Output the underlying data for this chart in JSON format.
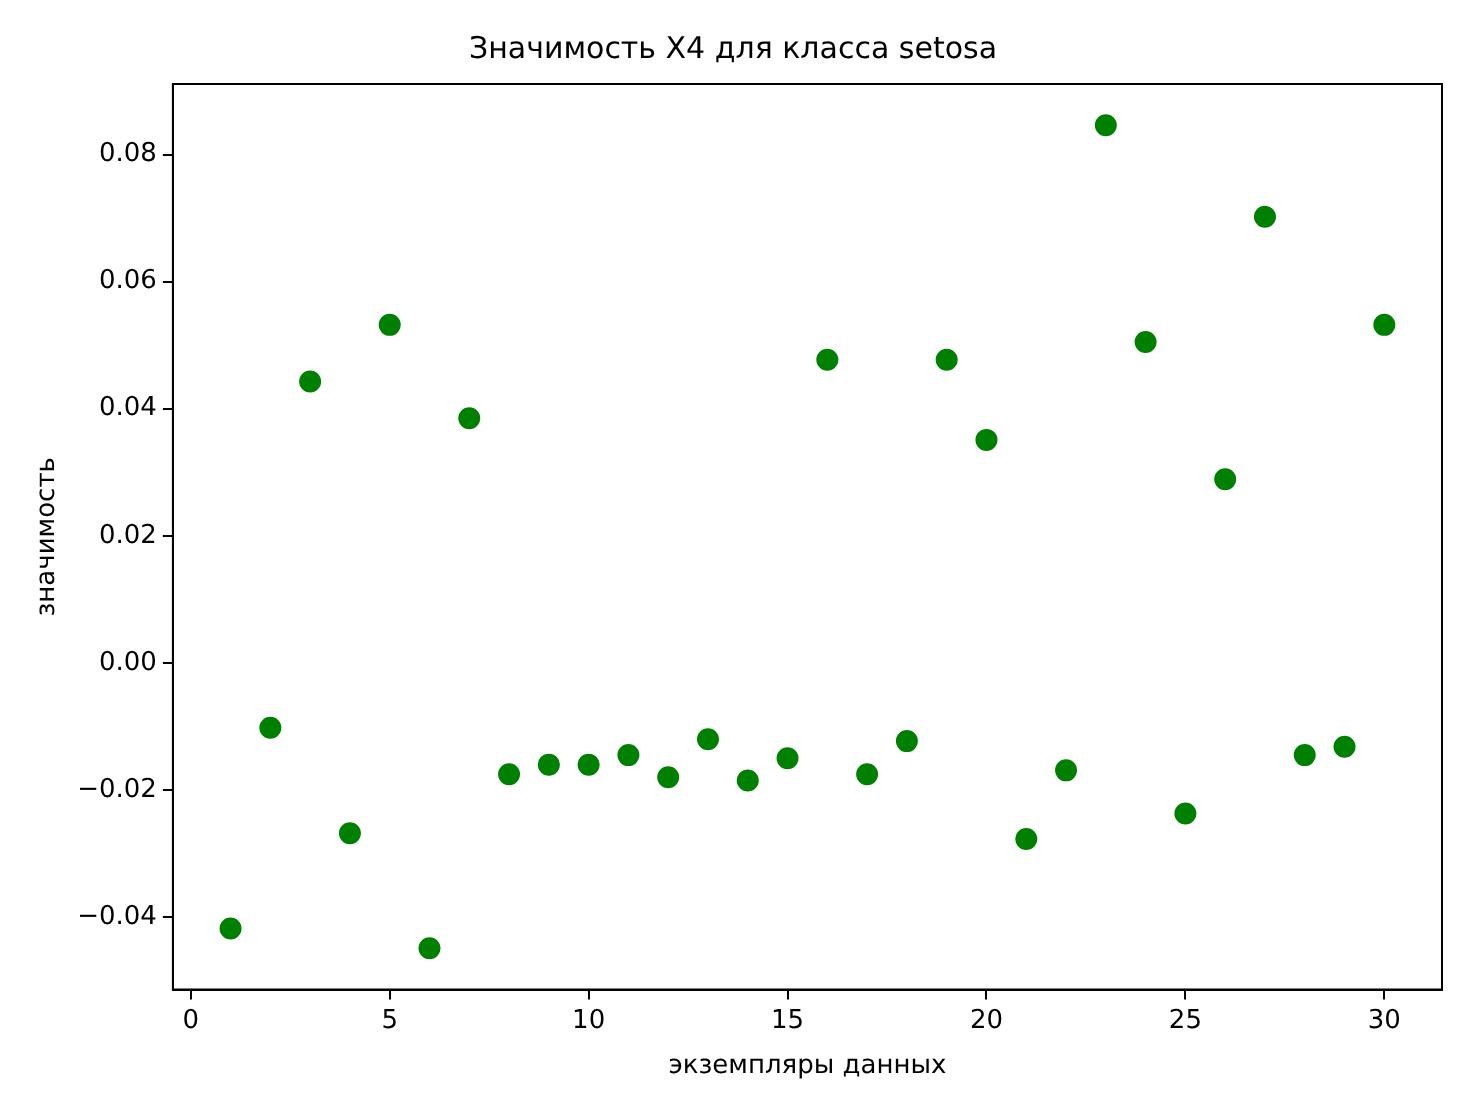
{
  "chart_data": {
    "type": "scatter",
    "title": "Значимость X4 для класса setosa",
    "xlabel": "экземпляры данных",
    "ylabel": "значимость",
    "x": [
      1,
      2,
      3,
      4,
      5,
      6,
      7,
      8,
      9,
      10,
      11,
      12,
      13,
      14,
      15,
      16,
      17,
      18,
      19,
      20,
      21,
      22,
      23,
      24,
      25,
      26,
      27,
      28,
      29,
      30
    ],
    "series": [
      {
        "color": "#008000",
        "values": [
          -0.0418,
          -0.0102,
          0.0443,
          -0.0268,
          0.0532,
          -0.0449,
          0.0385,
          -0.0175,
          -0.016,
          -0.016,
          -0.0145,
          -0.018,
          -0.012,
          -0.0185,
          -0.015,
          0.0477,
          -0.0175,
          -0.0123,
          0.0477,
          0.0351,
          -0.0277,
          -0.0169,
          0.0846,
          0.0505,
          -0.0237,
          0.0289,
          0.0702,
          -0.0145,
          -0.0132,
          0.0532
        ]
      }
    ],
    "xlim": [
      -0.45,
      31.45
    ],
    "ylim": [
      -0.0514,
      0.0911
    ],
    "xticks": [
      0,
      5,
      10,
      15,
      20,
      25,
      30
    ],
    "yticks": [
      {
        "value": -0.04,
        "label": "−0.04"
      },
      {
        "value": -0.02,
        "label": "−0.02"
      },
      {
        "value": 0,
        "label": "0.00"
      },
      {
        "value": 0.02,
        "label": "0.02"
      },
      {
        "value": 0.04,
        "label": "0.04"
      },
      {
        "value": 0.06,
        "label": "0.06"
      },
      {
        "value": 0.08,
        "label": "0.08"
      }
    ],
    "grid": false,
    "legend": false,
    "marker": "circle"
  }
}
